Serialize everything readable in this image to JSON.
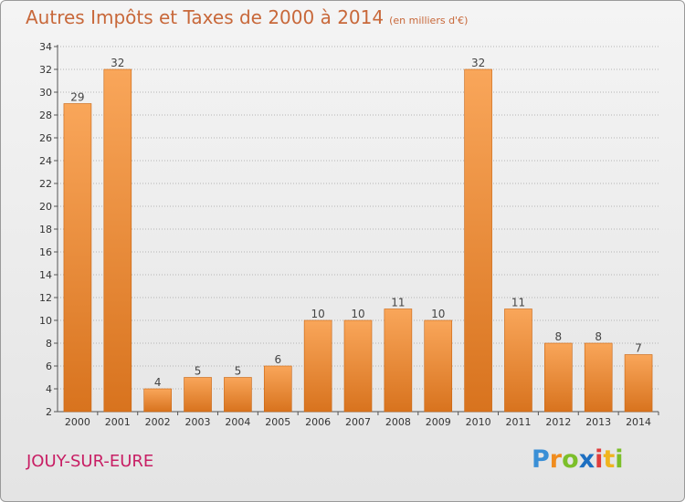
{
  "title": "Autres Impôts et Taxes de 2000 à 2014",
  "subtitle": "(en milliers d'€)",
  "commune": "JOUY-SUR-EURE",
  "logo": {
    "text": "Proxiti",
    "letters": [
      "P",
      "r",
      "o",
      "x",
      "i",
      "t",
      "i"
    ],
    "colors": [
      "#3a8fd6",
      "#f08c1e",
      "#7cbf2a",
      "#1d6fc1",
      "#e03c3c",
      "#f0b41e",
      "#7cbf2a"
    ]
  },
  "colors": {
    "title": "#c8683a",
    "commune": "#c81e64",
    "bar_light": "#f9a65a",
    "bar_dark": "#d8731e",
    "bar_stroke": "#c86410"
  },
  "chart_data": {
    "type": "bar",
    "title": "Autres Impôts et Taxes de 2000 à 2014",
    "subtitle": "(en milliers d'€)",
    "xlabel": "",
    "ylabel": "",
    "categories": [
      "2000",
      "2001",
      "2002",
      "2003",
      "2004",
      "2005",
      "2006",
      "2007",
      "2008",
      "2009",
      "2010",
      "2011",
      "2012",
      "2013",
      "2014"
    ],
    "values": [
      29,
      32,
      4,
      5,
      5,
      6,
      10,
      10,
      11,
      10,
      32,
      11,
      8,
      8,
      7
    ],
    "ylim": [
      2,
      34
    ],
    "yticks": [
      2,
      4,
      6,
      8,
      10,
      12,
      14,
      16,
      18,
      20,
      22,
      24,
      26,
      28,
      30,
      32,
      34
    ],
    "grid": "horizontal dotted",
    "legend": "none"
  }
}
